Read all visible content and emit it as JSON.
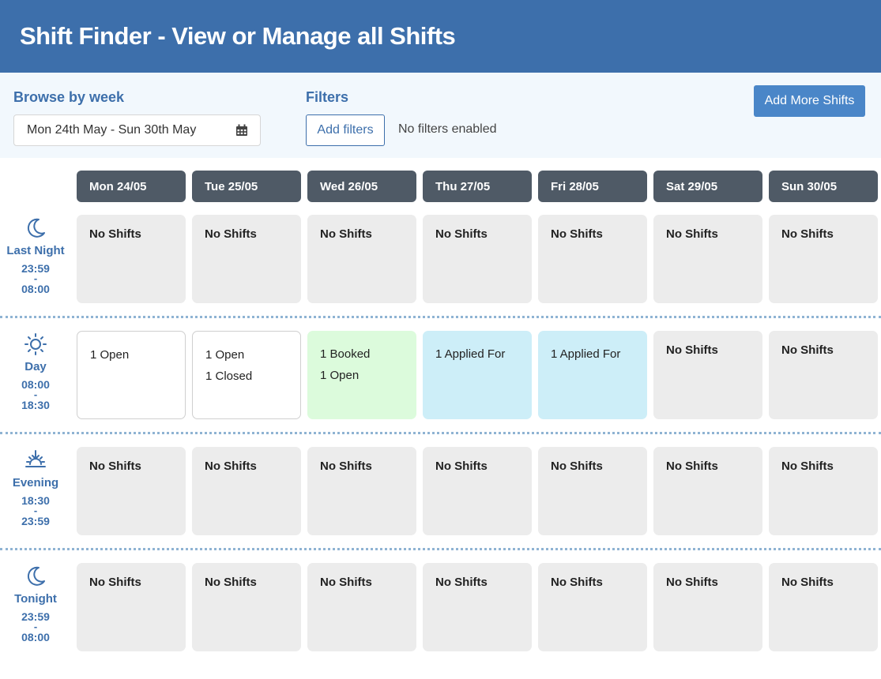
{
  "header": {
    "title": "Shift Finder - View or Manage all Shifts"
  },
  "controls": {
    "browse_label": "Browse by week",
    "week_value": "Mon 24th May - Sun 30th May",
    "filters_label": "Filters",
    "add_filters_label": "Add filters",
    "filters_status": "No filters enabled",
    "add_more_label": "Add More Shifts"
  },
  "days": [
    "Mon 24/05",
    "Tue 25/05",
    "Wed 26/05",
    "Thu 27/05",
    "Fri 28/05",
    "Sat 29/05",
    "Sun 30/05"
  ],
  "rows": [
    {
      "name": "Last Night",
      "start": "23:59",
      "end": "08:00",
      "icon": "moon-icon",
      "cells": [
        [
          "No Shifts"
        ],
        [
          "No Shifts"
        ],
        [
          "No Shifts"
        ],
        [
          "No Shifts"
        ],
        [
          "No Shifts"
        ],
        [
          "No Shifts"
        ],
        [
          "No Shifts"
        ]
      ],
      "styles": [
        "nos",
        "nos",
        "nos",
        "nos",
        "nos",
        "nos",
        "nos"
      ]
    },
    {
      "name": "Day",
      "start": "08:00",
      "end": "18:30",
      "icon": "sun-icon",
      "cells": [
        [
          "1 Open"
        ],
        [
          "1 Open",
          "1 Closed"
        ],
        [
          "1 Booked",
          "1 Open"
        ],
        [
          "1 Applied For"
        ],
        [
          "1 Applied For"
        ],
        [
          "No Shifts"
        ],
        [
          "No Shifts"
        ]
      ],
      "styles": [
        "open",
        "open",
        "booked",
        "applied",
        "applied",
        "nos",
        "nos"
      ]
    },
    {
      "name": "Evening",
      "start": "18:30",
      "end": "23:59",
      "icon": "sunset-icon",
      "cells": [
        [
          "No Shifts"
        ],
        [
          "No Shifts"
        ],
        [
          "No Shifts"
        ],
        [
          "No Shifts"
        ],
        [
          "No Shifts"
        ],
        [
          "No Shifts"
        ],
        [
          "No Shifts"
        ]
      ],
      "styles": [
        "nos",
        "nos",
        "nos",
        "nos",
        "nos",
        "nos",
        "nos"
      ]
    },
    {
      "name": "Tonight",
      "start": "23:59",
      "end": "08:00",
      "icon": "moon-icon",
      "cells": [
        [
          "No Shifts"
        ],
        [
          "No Shifts"
        ],
        [
          "No Shifts"
        ],
        [
          "No Shifts"
        ],
        [
          "No Shifts"
        ],
        [
          "No Shifts"
        ],
        [
          "No Shifts"
        ]
      ],
      "styles": [
        "nos",
        "nos",
        "nos",
        "nos",
        "nos",
        "nos",
        "nos"
      ]
    }
  ],
  "time_separator": "-",
  "colors": {
    "accent": "#3d6fab",
    "header_bg": "#3d6fab",
    "booked": "#dcfbdc",
    "applied": "#cdeef8",
    "empty": "#ececec"
  }
}
